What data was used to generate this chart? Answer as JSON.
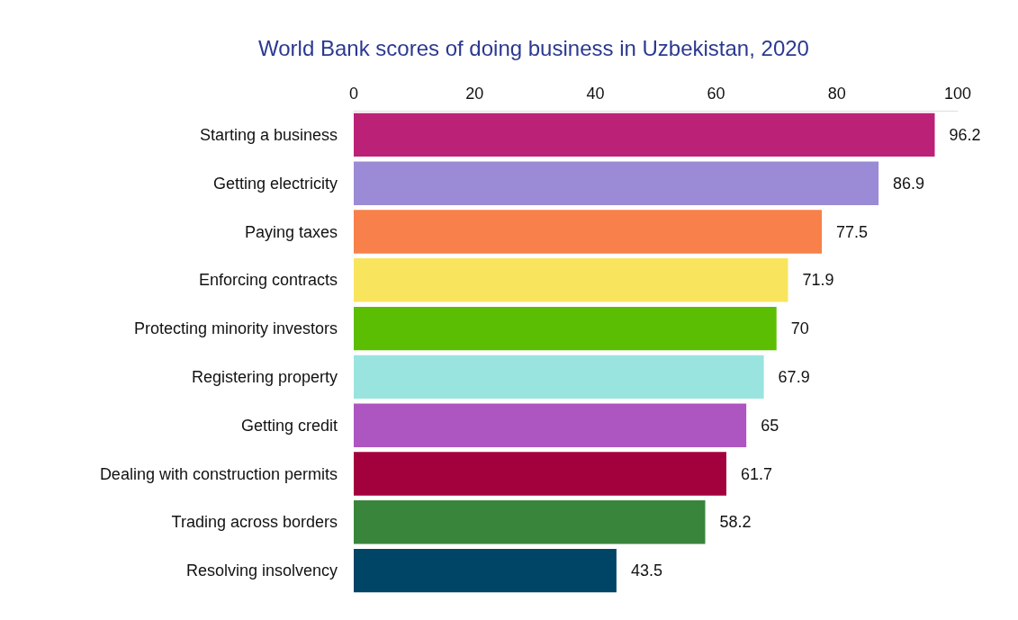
{
  "chart_data": {
    "type": "bar",
    "orientation": "horizontal",
    "title": "World Bank scores of doing business in Uzbekistan, 2020",
    "categories": [
      "Starting a business",
      "Getting electricity",
      "Paying taxes",
      "Enforcing contracts",
      "Protecting minority investors",
      "Registering property",
      "Getting credit",
      "Dealing with construction permits",
      "Trading across borders",
      "Resolving insolvency"
    ],
    "values": [
      96.2,
      86.9,
      77.5,
      71.9,
      70,
      67.9,
      65,
      61.7,
      58.2,
      43.5
    ],
    "colors": [
      "#bb2277",
      "#9b8bd6",
      "#f8804a",
      "#f9e45e",
      "#5cbe02",
      "#9ae4e0",
      "#ad55c0",
      "#a3003e",
      "#3a853c",
      "#004466"
    ],
    "xlim": [
      0,
      100
    ],
    "xticks": [
      0,
      20,
      40,
      60,
      80,
      100
    ],
    "grid": false,
    "data_labels": true
  }
}
